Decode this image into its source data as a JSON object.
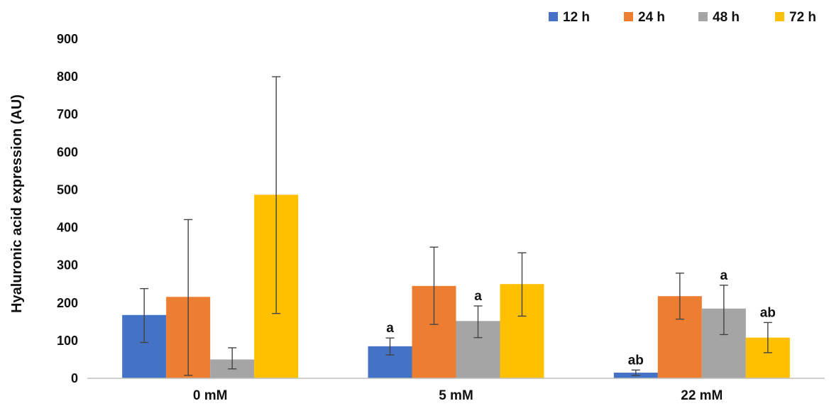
{
  "chart_data": {
    "type": "bar",
    "title": "",
    "xlabel": "",
    "ylabel": "Hyaluronic acid expression (AU)",
    "ylim": [
      0,
      900
    ],
    "yticks": [
      "0",
      "100",
      "200",
      "300",
      "400",
      "500",
      "600",
      "700",
      "800",
      "900"
    ],
    "categories": [
      "0 mM",
      "5 mM",
      "22 mM"
    ],
    "legend_position": "top-right",
    "grid": false,
    "series": [
      {
        "name": "12 h",
        "color": "#4472C4",
        "values": [
          168,
          85,
          15
        ],
        "err_low": [
          95,
          62,
          8
        ],
        "err_high": [
          238,
          107,
          22
        ],
        "labels": [
          "",
          "a",
          "ab"
        ]
      },
      {
        "name": "24 h",
        "color": "#ED7D31",
        "values": [
          216,
          245,
          218
        ],
        "err_low": [
          8,
          143,
          157
        ],
        "err_high": [
          421,
          348,
          279
        ],
        "labels": [
          "",
          "",
          ""
        ]
      },
      {
        "name": "48 h",
        "color": "#A5A5A5",
        "values": [
          50,
          152,
          185
        ],
        "err_low": [
          25,
          108,
          116
        ],
        "err_high": [
          81,
          192,
          247
        ],
        "labels": [
          "",
          "a",
          "a"
        ]
      },
      {
        "name": "72 h",
        "color": "#FFC000",
        "values": [
          487,
          250,
          108
        ],
        "err_low": [
          172,
          165,
          68
        ],
        "err_high": [
          800,
          333,
          148
        ],
        "labels": [
          "",
          "",
          "ab"
        ]
      }
    ]
  }
}
